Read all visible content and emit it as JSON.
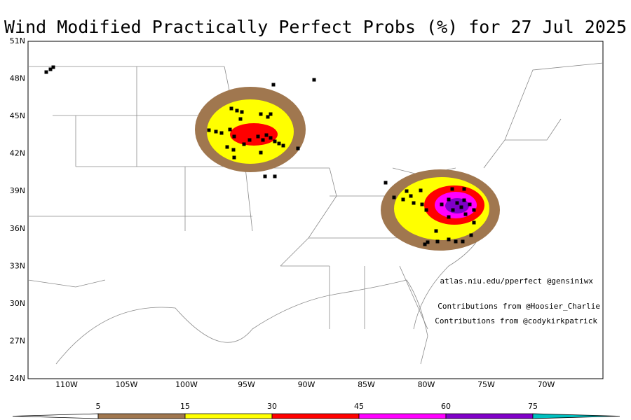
{
  "title": "Wind Modified Practically Perfect Probs (%) for 27 Jul 2025",
  "lat_labels": [
    "51N",
    "48N",
    "45N",
    "42N",
    "39N",
    "36N",
    "33N",
    "30N",
    "27N",
    "24N"
  ],
  "lon_labels": [
    "110W",
    "105W",
    "100W",
    "95W",
    "90W",
    "85W",
    "80W",
    "75W",
    "70W"
  ],
  "credits": [
    "atlas.niu.edu/pperfect @gensiniwx",
    "Contributions from @Hoosier_Charlie",
    "Contributions from @codykirkpatrick"
  ],
  "colorbar": {
    "labels": [
      5,
      15,
      30,
      45,
      60,
      75
    ],
    "colors": [
      "#ffffff",
      "#a0774f",
      "#ffff00",
      "#ff0000",
      "#ff00ff",
      "#8000c8",
      "#00c0c0"
    ]
  }
}
